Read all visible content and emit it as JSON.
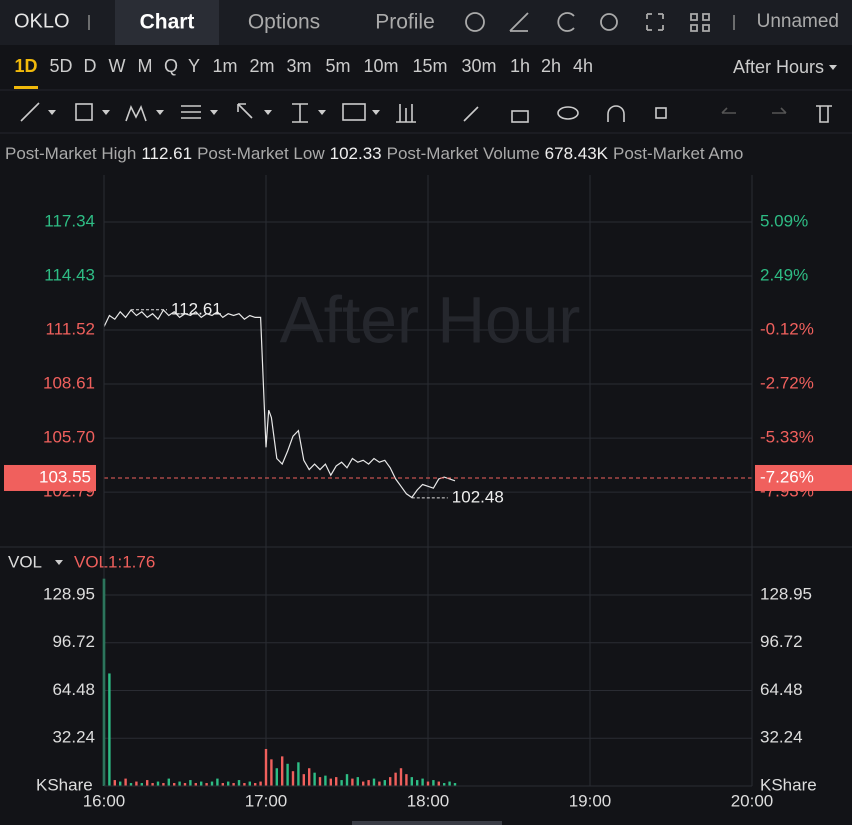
{
  "header": {
    "symbol": "OKLO",
    "tabs": [
      "Chart",
      "Options",
      "Profile"
    ],
    "account": "Unnamed"
  },
  "periods": [
    "1D",
    "5D",
    "D",
    "W",
    "M",
    "Q",
    "Y",
    "1m",
    "2m",
    "3m",
    "5m",
    "10m",
    "15m",
    "30m",
    "1h",
    "2h",
    "4h"
  ],
  "session": "After Hours",
  "stats": [
    {
      "label": "Post-Market High",
      "value": "112.61"
    },
    {
      "label": "Post-Market Low",
      "value": "102.33"
    },
    {
      "label": "Post-Market Volume",
      "value": "678.43K"
    },
    {
      "label": "Post-Market Amo"
    }
  ],
  "chart_data": [
    {
      "type": "line",
      "watermark": "After Hour",
      "color": "#e8e8e8",
      "x": [
        "16:00",
        "16:02",
        "16:04",
        "16:06",
        "16:08",
        "16:10",
        "16:12",
        "16:14",
        "16:16",
        "16:18",
        "16:20",
        "16:22",
        "16:24",
        "16:26",
        "16:28",
        "16:30",
        "16:32",
        "16:34",
        "16:36",
        "16:38",
        "16:40",
        "16:42",
        "16:44",
        "16:46",
        "16:48",
        "16:50",
        "16:52",
        "16:54",
        "16:56",
        "16:58",
        "17:00",
        "17:01",
        "17:02",
        "17:04",
        "17:06",
        "17:08",
        "17:10",
        "17:12",
        "17:14",
        "17:16",
        "17:18",
        "17:20",
        "17:22",
        "17:24",
        "17:26",
        "17:28",
        "17:30",
        "17:32",
        "17:34",
        "17:36",
        "17:38",
        "17:40",
        "17:42",
        "17:44",
        "17:46",
        "17:48",
        "17:50",
        "17:52",
        "17:54",
        "17:56",
        "17:58",
        "18:00",
        "18:02",
        "18:04",
        "18:06",
        "18:08",
        "18:10"
      ],
      "values": [
        111.7,
        112.3,
        112.1,
        112.5,
        112.2,
        112.6,
        112.3,
        112.5,
        112.2,
        112.4,
        112.1,
        112.6,
        112.3,
        112.5,
        112.2,
        112.4,
        112.3,
        112.5,
        112.2,
        112.4,
        112.3,
        112.5,
        112.2,
        112.4,
        112.3,
        112.4,
        112.1,
        112.3,
        112.2,
        112.2,
        105.2,
        107.2,
        106.8,
        104.6,
        104.3,
        105.0,
        105.8,
        106.1,
        104.5,
        104.0,
        104.3,
        104.0,
        104.3,
        103.7,
        104.2,
        104.4,
        104.1,
        104.6,
        104.4,
        104.5,
        104.3,
        104.6,
        104.4,
        104.5,
        104.1,
        103.5,
        103.1,
        102.7,
        102.5,
        102.9,
        103.2,
        103.1,
        103.0,
        103.5,
        103.6,
        103.5,
        103.4
      ],
      "xlim": [
        "16:00",
        "20:00"
      ],
      "xticks": [
        "16:00",
        "17:00",
        "18:00",
        "19:00",
        "20:00"
      ],
      "ylim": [
        99.94,
        119.87
      ],
      "yticks": [
        117.34,
        114.43,
        111.52,
        108.61,
        {
          "value": 105.7,
          "label": "105.70"
        },
        102.79
      ],
      "y2lim": [
        -10.48,
        7.35
      ],
      "y2ticks": [
        {
          "value": 5.09,
          "label": "5.09%"
        },
        {
          "value": 2.49,
          "label": "2.49%"
        },
        {
          "value": -0.12,
          "label": "-0.12%"
        },
        {
          "value": -2.72,
          "label": "-2.72%"
        },
        {
          "value": -5.33,
          "label": "-5.33%"
        },
        {
          "value": -7.93,
          "label": "-7.93%"
        }
      ],
      "last_price": 103.55,
      "last_change": {
        "value": -7.26,
        "label": "-7.26%"
      },
      "annotations": [
        {
          "x": "16:10",
          "value": 112.61
        },
        {
          "x": "17:54",
          "value": 102.48
        }
      ],
      "up_color": "#2ebd85",
      "down_color": "#f0605d",
      "grid": true
    },
    {
      "type": "bar",
      "legend": "VOL",
      "indicator": "VOL1:1.76",
      "unit": "KShare",
      "x": [
        "16:00",
        "16:02",
        "16:04",
        "16:06",
        "16:08",
        "16:10",
        "16:12",
        "16:14",
        "16:16",
        "16:18",
        "16:20",
        "16:22",
        "16:24",
        "16:26",
        "16:28",
        "16:30",
        "16:32",
        "16:34",
        "16:36",
        "16:38",
        "16:40",
        "16:42",
        "16:44",
        "16:46",
        "16:48",
        "16:50",
        "16:52",
        "16:54",
        "16:56",
        "16:58",
        "17:00",
        "17:02",
        "17:04",
        "17:06",
        "17:08",
        "17:10",
        "17:12",
        "17:14",
        "17:16",
        "17:18",
        "17:20",
        "17:22",
        "17:24",
        "17:26",
        "17:28",
        "17:30",
        "17:32",
        "17:34",
        "17:36",
        "17:38",
        "17:40",
        "17:42",
        "17:44",
        "17:46",
        "17:48",
        "17:50",
        "17:52",
        "17:54",
        "17:56",
        "17:58",
        "18:00",
        "18:02",
        "18:04",
        "18:06",
        "18:08",
        "18:10"
      ],
      "values": [
        140,
        76,
        4,
        3,
        5,
        2,
        3,
        2,
        4,
        2,
        3,
        2,
        5,
        2,
        3,
        2,
        4,
        2,
        3,
        2,
        3,
        5,
        2,
        3,
        2,
        4,
        2,
        3,
        2,
        3,
        25,
        18,
        12,
        20,
        15,
        10,
        16,
        8,
        12,
        9,
        6,
        7,
        5,
        6,
        4,
        8,
        5,
        6,
        3,
        4,
        5,
        3,
        4,
        6,
        9,
        12,
        8,
        6,
        4,
        5,
        3,
        4,
        3,
        2,
        3,
        2
      ],
      "colors": [
        "#2ebd85",
        "#2ebd85",
        "#f0605d",
        "#2ebd85",
        "#f0605d",
        "#2ebd85",
        "#f0605d",
        "#2ebd85",
        "#f0605d",
        "#f0605d",
        "#2ebd85",
        "#f0605d",
        "#2ebd85",
        "#f0605d",
        "#2ebd85",
        "#f0605d",
        "#2ebd85",
        "#f0605d",
        "#2ebd85",
        "#f0605d",
        "#2ebd85",
        "#2ebd85",
        "#f0605d",
        "#2ebd85",
        "#f0605d",
        "#2ebd85",
        "#f0605d",
        "#2ebd85",
        "#f0605d",
        "#f0605d",
        "#f0605d",
        "#f0605d",
        "#2ebd85",
        "#f0605d",
        "#2ebd85",
        "#f0605d",
        "#2ebd85",
        "#f0605d",
        "#f0605d",
        "#2ebd85",
        "#f0605d",
        "#2ebd85",
        "#f0605d",
        "#f0605d",
        "#2ebd85",
        "#2ebd85",
        "#f0605d",
        "#2ebd85",
        "#f0605d",
        "#f0605d",
        "#2ebd85",
        "#f0605d",
        "#2ebd85",
        "#f0605d",
        "#f0605d",
        "#f0605d",
        "#f0605d",
        "#2ebd85",
        "#2ebd85",
        "#2ebd85",
        "#f0605d",
        "#2ebd85",
        "#f0605d",
        "#2ebd85",
        "#2ebd85",
        "#2ebd85"
      ],
      "xlim": [
        "16:00",
        "20:00"
      ],
      "ylim": [
        0,
        160.7
      ],
      "yticks": [
        32.24,
        64.48,
        96.72,
        128.95
      ]
    }
  ]
}
